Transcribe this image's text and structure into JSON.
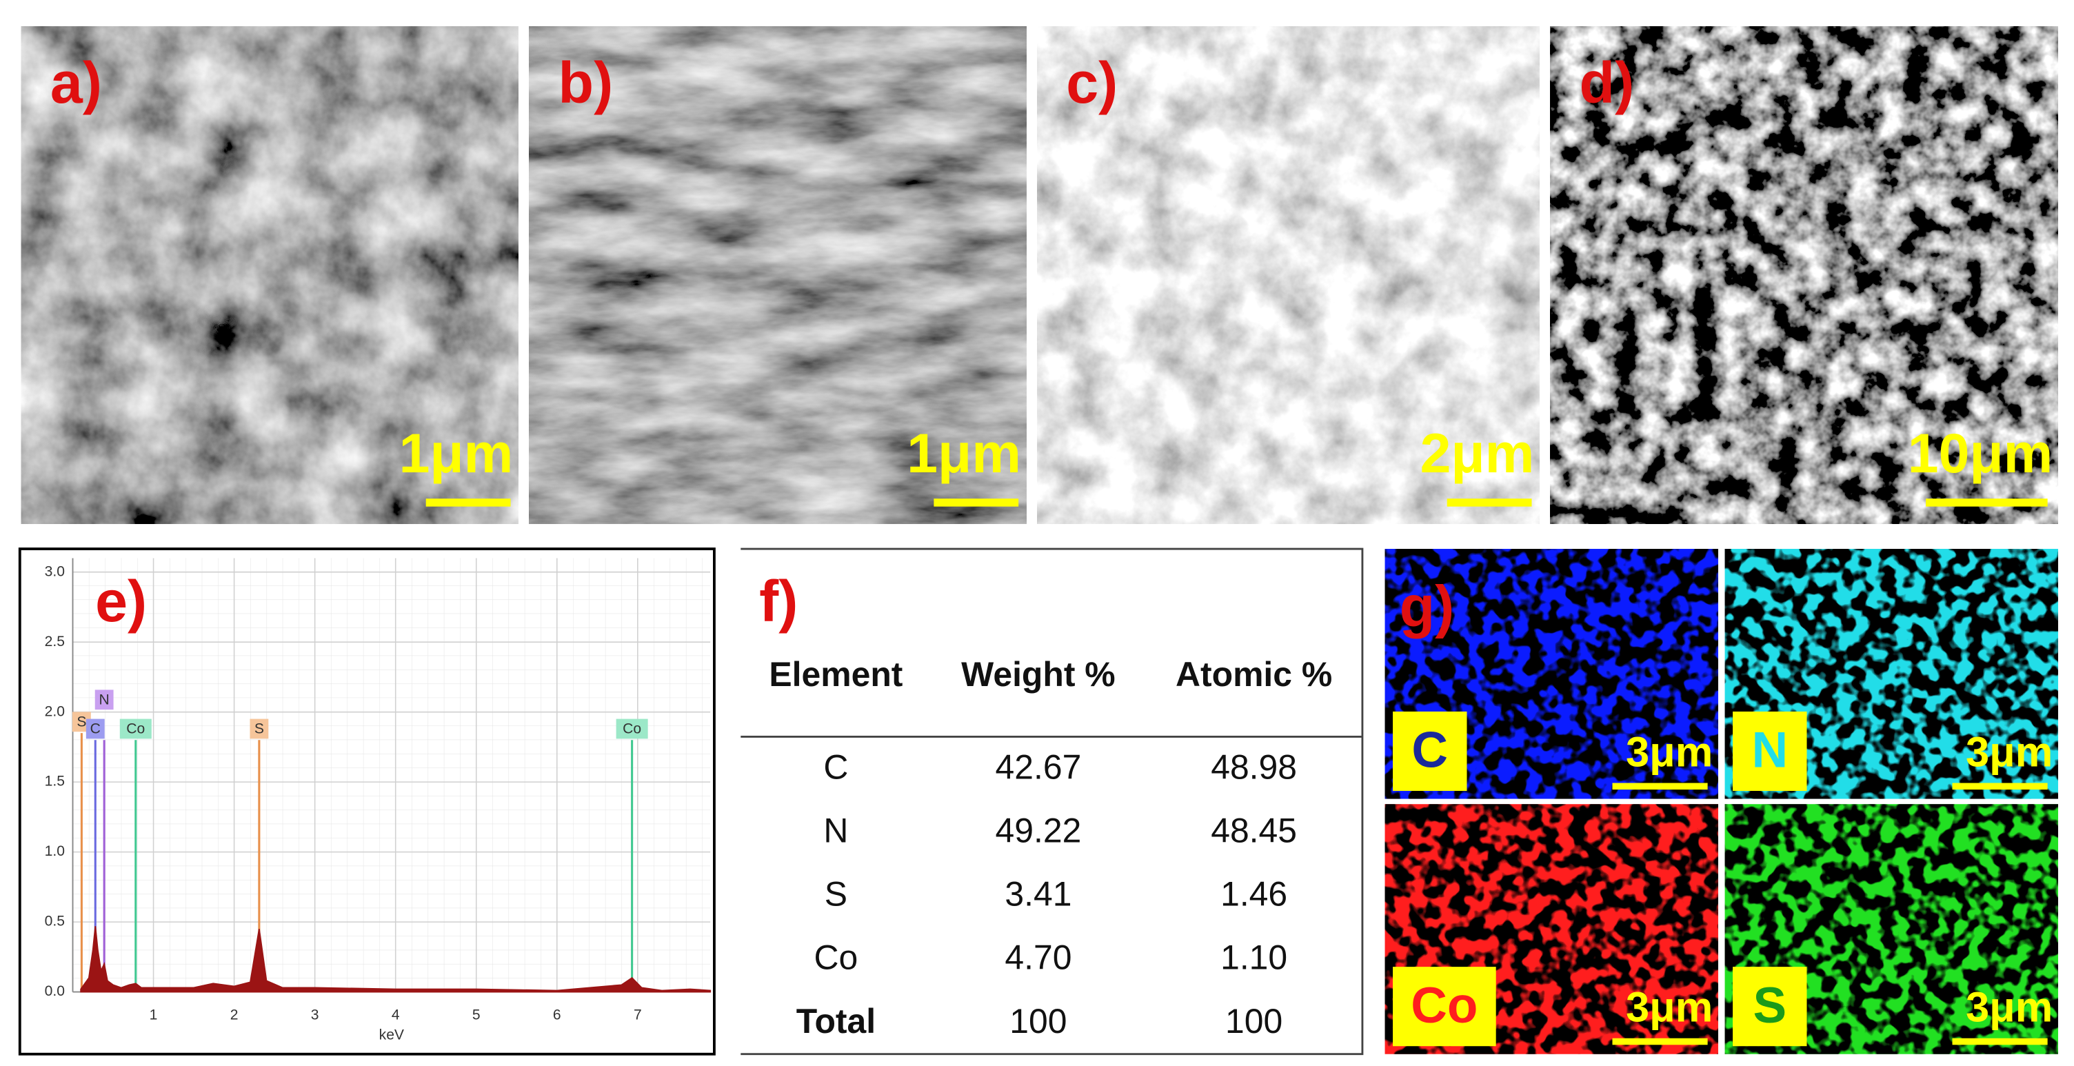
{
  "panels": [
    {
      "label": "a)",
      "scale_bar": "1μm"
    },
    {
      "label": "b)",
      "scale_bar": "1μm"
    },
    {
      "label": "c)",
      "scale_bar": "2μm"
    },
    {
      "label": "d)",
      "scale_bar": "10μm"
    }
  ],
  "chart_data": {
    "type": "area",
    "title": "e)",
    "xlabel": "keV",
    "color": "#9b1414",
    "x": [
      0.1,
      0.2,
      0.25,
      0.28,
      0.31,
      0.35,
      0.39,
      0.43,
      0.5,
      0.6,
      0.7,
      0.78,
      0.85,
      1,
      1.5,
      1.74,
      2,
      2.2,
      2.31,
      2.4,
      2.6,
      3,
      4,
      5,
      6,
      6.8,
      6.93,
      7.05,
      7.3,
      7.65,
      7.9
    ],
    "values": [
      0.02,
      0.1,
      0.3,
      0.47,
      0.3,
      0.15,
      0.2,
      0.08,
      0.05,
      0.03,
      0.05,
      0.06,
      0.03,
      0.03,
      0.03,
      0.06,
      0.04,
      0.07,
      0.45,
      0.08,
      0.03,
      0.03,
      0.02,
      0.02,
      0.01,
      0.05,
      0.1,
      0.03,
      0.01,
      0.02,
      0.01
    ],
    "xlim": [
      0,
      7.9
    ],
    "ylim": [
      0,
      3.1
    ],
    "xticks": [
      1,
      2,
      3,
      4,
      5,
      6,
      7
    ],
    "yticks": [
      {
        "value": 0,
        "label": "0.0"
      },
      0.5,
      {
        "value": 1,
        "label": "1.0"
      },
      1.5,
      {
        "value": 2,
        "label": "2.0"
      },
      2.5,
      {
        "value": 3,
        "label": "3.0"
      }
    ],
    "grid": true,
    "markers": [
      {
        "label": "S",
        "x": 0.11,
        "y": 1.85,
        "color": "#e8904a",
        "box": "#f6c59a"
      },
      {
        "label": "C",
        "x": 0.28,
        "y": 1.8,
        "color": "#6a6ae0",
        "box": "#9c9cf0"
      },
      {
        "label": "N",
        "x": 0.39,
        "y": 1.8,
        "color": "#a060d8",
        "box": "#c9a0f0"
      },
      {
        "label": "Co",
        "x": 0.78,
        "y": 1.8,
        "color": "#40c890",
        "box": "#9ce8c8"
      },
      {
        "label": "S",
        "x": 2.31,
        "y": 1.8,
        "color": "#e8904a",
        "box": "#f6c59a"
      },
      {
        "label": "Co",
        "x": 6.93,
        "y": 1.8,
        "color": "#40c890",
        "box": "#9ce8c8"
      }
    ]
  },
  "table": {
    "label": "f)",
    "columns": [
      "Element",
      "Weight %",
      "Atomic %"
    ],
    "rows": [
      [
        "C",
        "42.67",
        "48.98"
      ],
      [
        "N",
        "49.22",
        "48.45"
      ],
      [
        "S",
        "3.41",
        "1.46"
      ],
      [
        "Co",
        "4.70",
        "1.10"
      ],
      [
        "Total",
        "100",
        "100"
      ]
    ]
  },
  "maps": {
    "label": "g)",
    "items": [
      {
        "element": "C",
        "scale_bar": "3μm",
        "color": "#0b1cff"
      },
      {
        "element": "N",
        "scale_bar": "3μm",
        "color": "#22dde8"
      },
      {
        "element": "Co",
        "scale_bar": "3μm",
        "color": "#ff1e1e"
      },
      {
        "element": "S",
        "scale_bar": "3μm",
        "color": "#22e022"
      }
    ]
  }
}
